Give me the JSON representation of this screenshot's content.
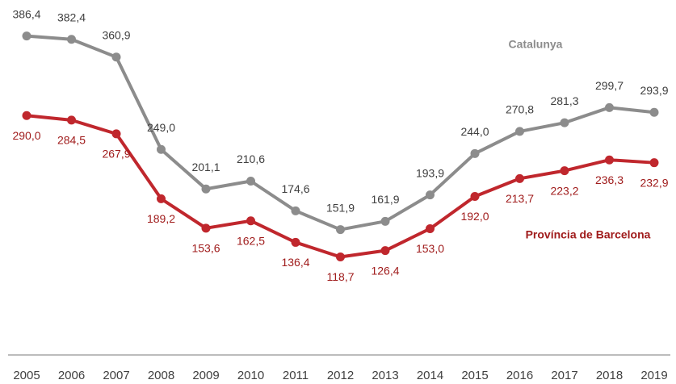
{
  "chart_data": {
    "type": "line",
    "categories": [
      "2005",
      "2006",
      "2007",
      "2008",
      "2009",
      "2010",
      "2011",
      "2012",
      "2013",
      "2014",
      "2015",
      "2016",
      "2017",
      "2018",
      "2019"
    ],
    "series": [
      {
        "name": "Catalunya",
        "color": "#8c8c8c",
        "values": [
          386.4,
          382.4,
          360.9,
          249.0,
          201.1,
          210.6,
          174.6,
          151.9,
          161.9,
          193.9,
          244.0,
          270.8,
          281.3,
          299.7,
          293.9
        ],
        "value_labels": [
          "386,4",
          "382,4",
          "360,9",
          "249,0",
          "201,1",
          "210,6",
          "174,6",
          "151,9",
          "161,9",
          "193,9",
          "244,0",
          "270,8",
          "281,3",
          "299,7",
          "293,9"
        ]
      },
      {
        "name": "Província de Barcelona",
        "color": "#c0272d",
        "values": [
          290.0,
          284.5,
          267.9,
          189.2,
          153.6,
          162.5,
          136.4,
          118.7,
          126.4,
          153.0,
          192.0,
          213.7,
          223.2,
          236.3,
          232.9
        ],
        "value_labels": [
          "290,0",
          "284,5",
          "267,9",
          "189,2",
          "153,6",
          "162,5",
          "136,4",
          "118,7",
          "126,4",
          "153,0",
          "192,0",
          "213,7",
          "223,2",
          "236,3",
          "232,9"
        ]
      }
    ],
    "ylim": [
      0,
      430
    ]
  }
}
